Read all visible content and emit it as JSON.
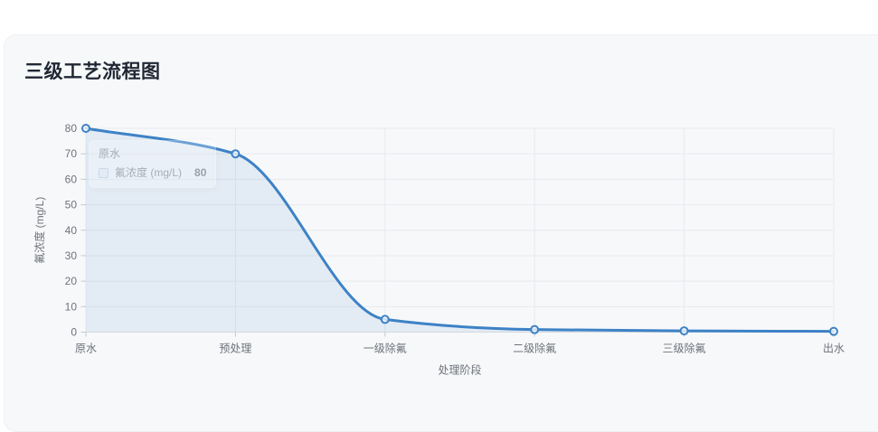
{
  "card": {
    "title": "三级工艺流程图",
    "background": "#f7f8fa"
  },
  "chart_data": {
    "type": "line",
    "smooth": true,
    "area": true,
    "grid": true,
    "legend_position": "none",
    "categories": [
      "原水",
      "预处理",
      "一级除氟",
      "二级除氟",
      "三级除氟",
      "出水"
    ],
    "series": [
      {
        "name": "氟浓度 (mg/L)",
        "values": [
          80,
          70,
          5,
          1,
          0.5,
          0.3
        ]
      }
    ],
    "xlabel": "处理阶段",
    "ylabel": "氟浓度 (mg/L)",
    "ylim": [
      0,
      80
    ],
    "yticks": [
      0,
      10,
      20,
      30,
      40,
      50,
      60,
      70,
      80
    ]
  },
  "tooltip": {
    "title": "原水",
    "series_label": "氟浓度 (mg/L)",
    "value": "80"
  },
  "colors": {
    "line": "#3d82c6",
    "area_fill": "rgba(61,130,198,0.10)",
    "marker_fill": "rgba(255,255,255,0.75)",
    "grid_line": "#e7eaee",
    "axis_line": "#d4d8de",
    "tick_mark": "#c3c8cf",
    "tick_label": "#6e737a",
    "axis_title": "#6e737a",
    "card_title": "#1f2733"
  }
}
